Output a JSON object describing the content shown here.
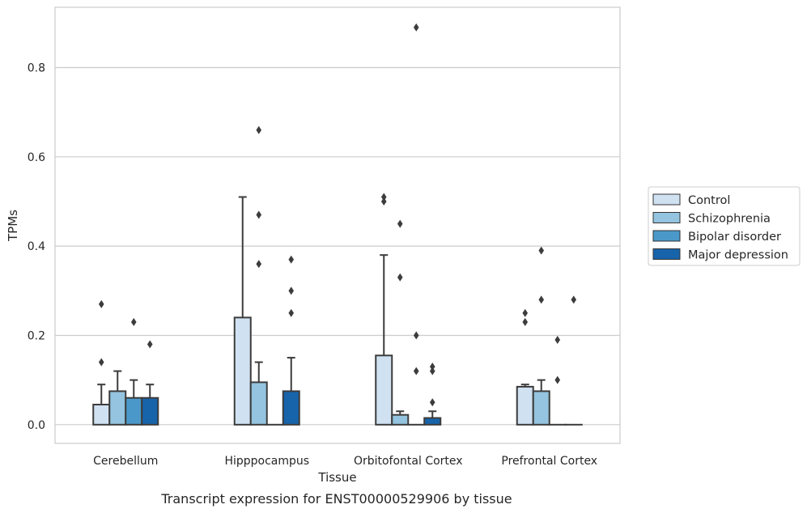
{
  "caption": "Transcript expression for ENST00000529906 by tissue",
  "chart_data": {
    "type": "bar",
    "xlabel": "Tissue",
    "ylabel": "TPMs",
    "ylim": [
      -0.042,
      0.935
    ],
    "yticks": [
      "0.0",
      "0.2",
      "0.4",
      "0.6",
      "0.8"
    ],
    "grid": "horizontal",
    "legend_position": "right",
    "categories": [
      "Cerebellum",
      "Hipppocampus",
      "Orbitofontal Cortex",
      "Prefrontal Cortex"
    ],
    "series": [
      {
        "name": "Control",
        "color": "#d0e1f2",
        "values": [
          0.045,
          0.24,
          0.155,
          0.085
        ],
        "whisker_high": [
          0.09,
          0.51,
          0.38,
          0.09
        ],
        "outliers": [
          [
            0.14,
            0.27
          ],
          [],
          [
            0.5,
            0.51
          ],
          [
            0.23,
            0.25
          ]
        ]
      },
      {
        "name": "Schizophrenia",
        "color": "#94c4df",
        "values": [
          0.075,
          0.095,
          0.022,
          0.075
        ],
        "whisker_high": [
          0.12,
          0.14,
          0.03,
          0.1
        ],
        "outliers": [
          [],
          [
            0.36,
            0.47,
            0.66
          ],
          [
            0.33,
            0.45
          ],
          [
            0.28,
            0.39
          ]
        ]
      },
      {
        "name": "Bipolar disorder",
        "color": "#4a98c9",
        "values": [
          0.06,
          0.0,
          0.0,
          0.0
        ],
        "whisker_high": [
          0.1,
          null,
          null,
          null
        ],
        "outliers": [
          [
            0.23
          ],
          [],
          [
            0.12,
            0.2,
            0.89
          ],
          [
            0.1,
            0.19
          ]
        ]
      },
      {
        "name": "Major depression",
        "color": "#1764ab",
        "values": [
          0.06,
          0.075,
          0.015,
          0.0
        ],
        "whisker_high": [
          0.09,
          0.15,
          0.03,
          null
        ],
        "outliers": [
          [
            0.18
          ],
          [
            0.25,
            0.3,
            0.37
          ],
          [
            0.05,
            0.12,
            0.13
          ],
          [
            0.28
          ]
        ]
      }
    ]
  }
}
